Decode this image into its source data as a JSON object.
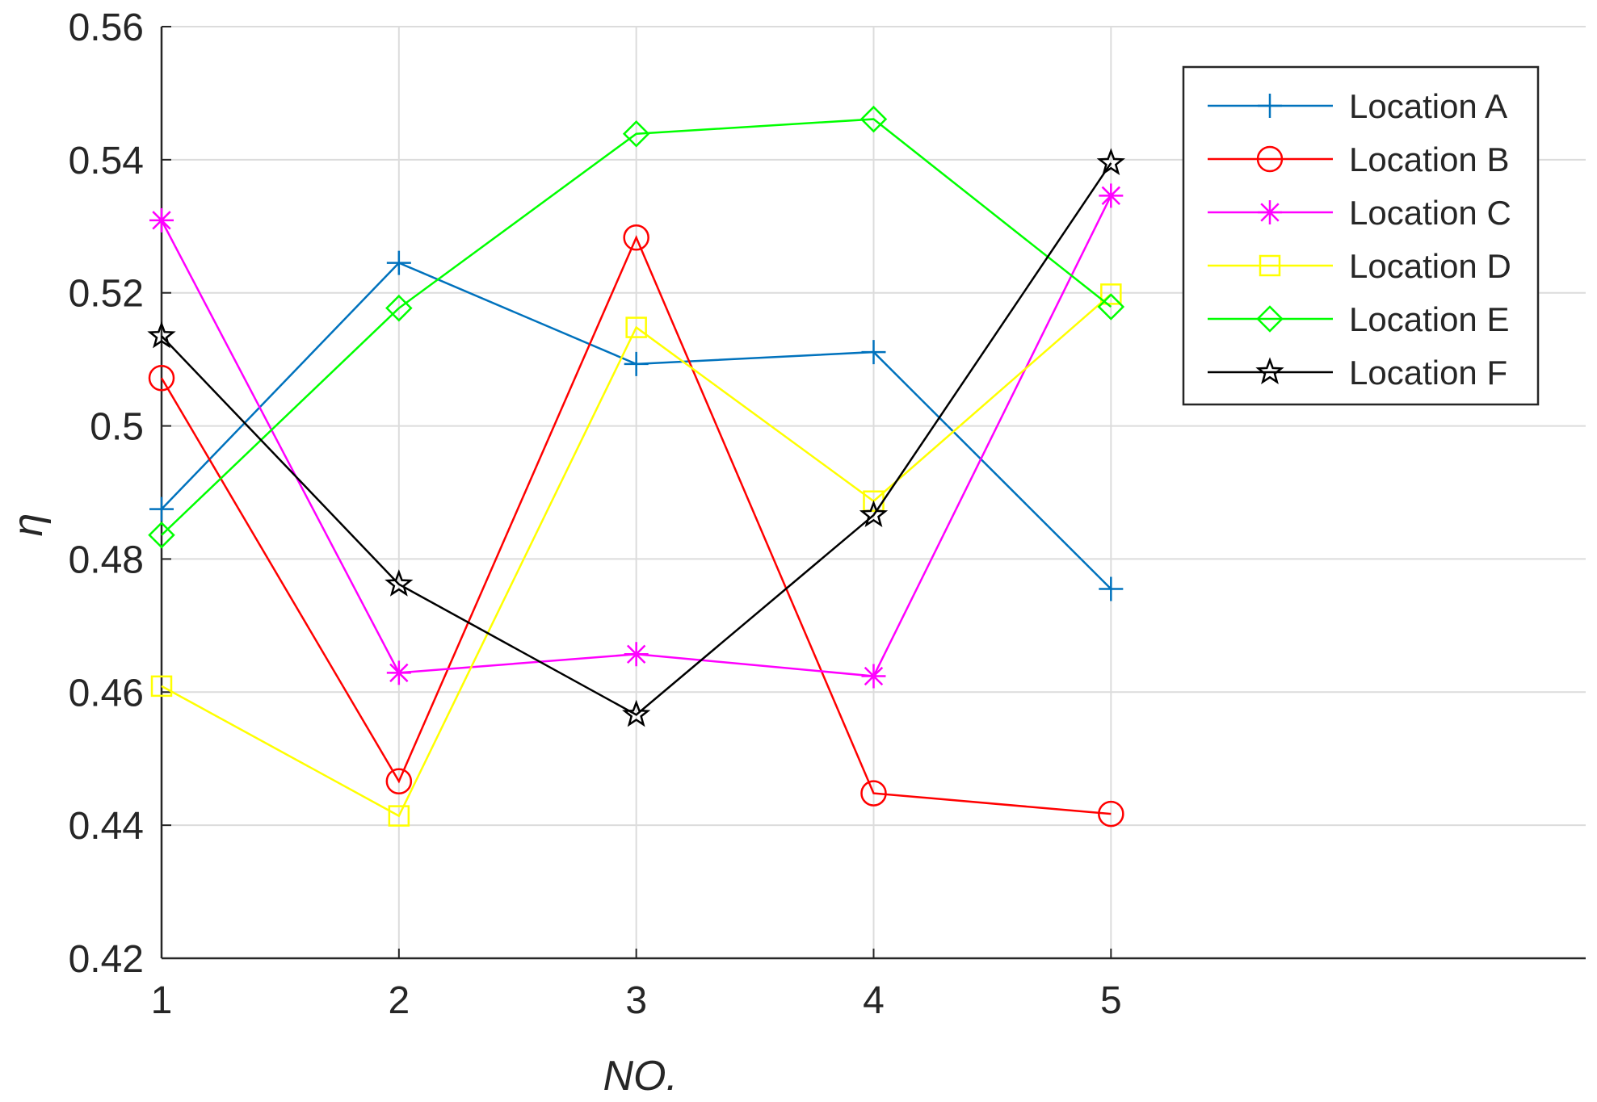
{
  "chart_data": {
    "type": "line",
    "title": "",
    "xlabel": "NO.",
    "ylabel": "η",
    "x": [
      1,
      2,
      3,
      4,
      5
    ],
    "xlim": [
      1,
      7
    ],
    "ylim": [
      0.42,
      0.56
    ],
    "xticks": [
      1,
      2,
      3,
      4,
      5
    ],
    "yticks": [
      0.42,
      0.44,
      0.46,
      0.48,
      0.5,
      0.52,
      0.54,
      0.56
    ],
    "ytick_labels": [
      "0.42",
      "0.44",
      "0.46",
      "0.48",
      "0.5",
      "0.52",
      "0.54",
      "0.56"
    ],
    "grid": true,
    "legend_position": "top-right",
    "series": [
      {
        "name": "Location A",
        "color": "#0072BD",
        "marker": "plus",
        "values": [
          0.4875,
          0.5245,
          0.5093,
          0.5111,
          0.4755
        ]
      },
      {
        "name": "Location B",
        "color": "#FF0000",
        "marker": "circle",
        "values": [
          0.5072,
          0.4466,
          0.5283,
          0.4448,
          0.4417
        ]
      },
      {
        "name": "Location C",
        "color": "#FF00FF",
        "marker": "star",
        "values": [
          0.5309,
          0.4629,
          0.4657,
          0.4624,
          0.5346
        ]
      },
      {
        "name": "Location D",
        "color": "#FFFF00",
        "marker": "square",
        "values": [
          0.4609,
          0.4414,
          0.5148,
          0.4887,
          0.5198
        ]
      },
      {
        "name": "Location E",
        "color": "#00FF00",
        "marker": "diamond",
        "values": [
          0.4836,
          0.5177,
          0.5439,
          0.5461,
          0.5179
        ]
      },
      {
        "name": "Location F",
        "color": "#000000",
        "marker": "pentagram",
        "values": [
          0.5135,
          0.4762,
          0.4566,
          0.4866,
          0.5395
        ]
      }
    ]
  }
}
